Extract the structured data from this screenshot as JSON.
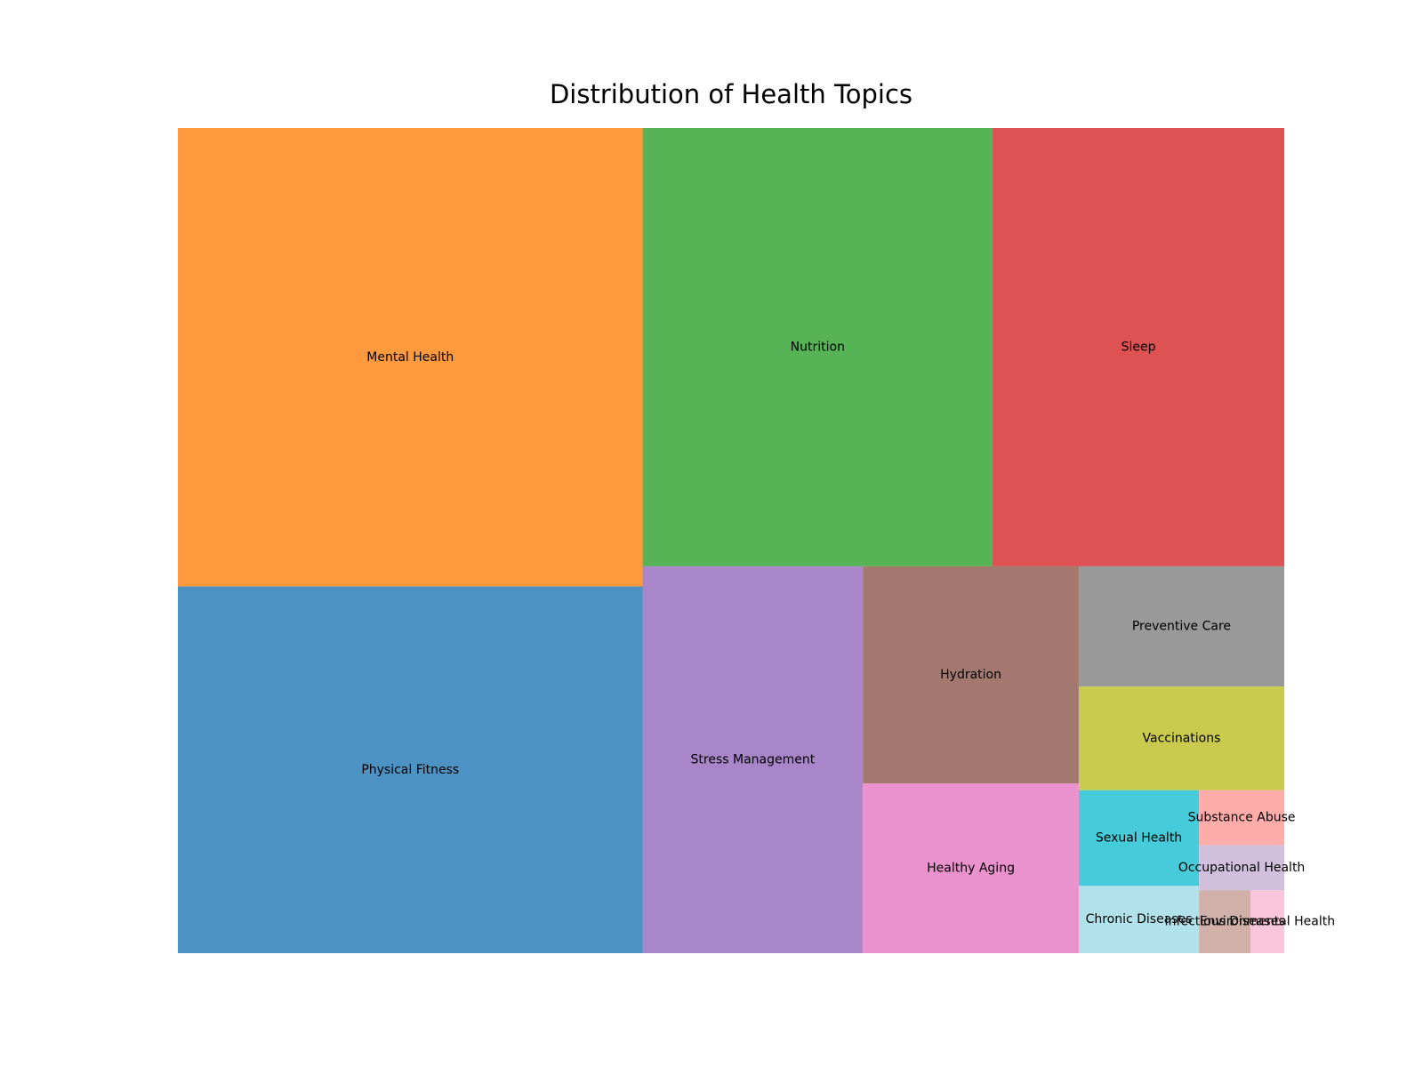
{
  "chart_data": {
    "type": "treemap",
    "title": "Distribution of Health Topics",
    "categories": [
      "Mental Health",
      "Physical Fitness",
      "Nutrition",
      "Sleep",
      "Stress Management",
      "Hydration",
      "Healthy Aging",
      "Preventive Care",
      "Vaccinations",
      "Sexual Health",
      "Chronic Diseases",
      "Substance Abuse",
      "Occupational Health",
      "Infectious Diseases",
      "Environmental Health"
    ],
    "values": [
      25,
      20,
      18,
      15,
      10,
      5.5,
      4.3,
      2.9,
      2.5,
      1.35,
      0.95,
      0.55,
      0.45,
      0.38,
      0.25
    ],
    "colors": [
      "#ff7f0e",
      "#1f77b4",
      "#2ca02c",
      "#d62728",
      "#9467bd",
      "#8c564b",
      "#e377c2",
      "#7f7f7f",
      "#bcbd22",
      "#17becf",
      "#9edae5",
      "#ff9896",
      "#c5b0d5",
      "#c49c94",
      "#f7b6d2"
    ],
    "alpha": 0.8,
    "axes_visible": false,
    "grid": false,
    "legend": "none"
  }
}
